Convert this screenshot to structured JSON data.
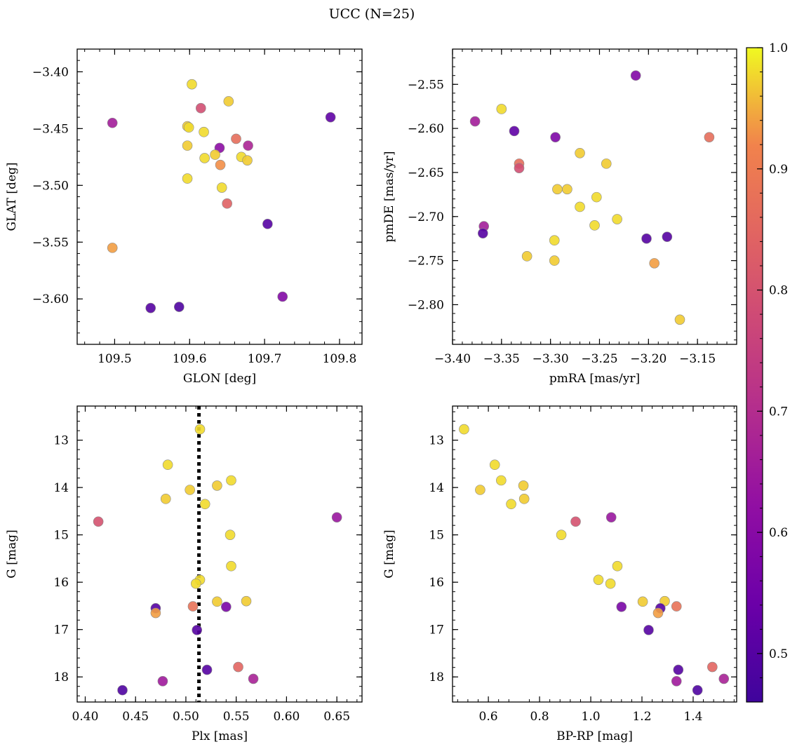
{
  "title": "UCC (N=25)",
  "colorbar": {
    "colormap": "plasma",
    "vmin": 0.46,
    "vmax": 1.0,
    "ticks": [
      0.5,
      0.6,
      0.7,
      0.8,
      0.9,
      1.0
    ],
    "tick_labels": [
      "0.5",
      "0.6",
      "0.7",
      "0.8",
      "0.9",
      "1.0"
    ]
  },
  "chart_data": [
    {
      "type": "scatter",
      "id": "glon-glat",
      "xlabel": "GLON [deg]",
      "ylabel": "GLAT [deg]",
      "xlim": [
        109.45,
        109.83
      ],
      "ylim": [
        -3.64,
        -3.38
      ],
      "y_inverted": false,
      "xticks": [
        109.5,
        109.6,
        109.7,
        109.8
      ],
      "xtick_labels": [
        "109.5",
        "109.6",
        "109.7",
        "109.8"
      ],
      "yticks": [
        -3.4,
        -3.45,
        -3.5,
        -3.55,
        -3.6
      ],
      "ytick_labels": [
        "−3.40",
        "−3.45",
        "−3.50",
        "−3.55",
        "−3.60"
      ],
      "points": [
        {
          "x": 109.603,
          "y": -3.411,
          "c": 0.98
        },
        {
          "x": 109.652,
          "y": -3.426,
          "c": 0.97
        },
        {
          "x": 109.788,
          "y": -3.44,
          "c": 0.52
        },
        {
          "x": 109.615,
          "y": -3.432,
          "c": 0.79
        },
        {
          "x": 109.497,
          "y": -3.445,
          "c": 0.66
        },
        {
          "x": 109.597,
          "y": -3.448,
          "c": 0.97
        },
        {
          "x": 109.599,
          "y": -3.449,
          "c": 0.98
        },
        {
          "x": 109.619,
          "y": -3.453,
          "c": 0.98
        },
        {
          "x": 109.662,
          "y": -3.459,
          "c": 0.87
        },
        {
          "x": 109.597,
          "y": -3.465,
          "c": 0.97
        },
        {
          "x": 109.64,
          "y": -3.467,
          "c": 0.61
        },
        {
          "x": 109.678,
          "y": -3.465,
          "c": 0.68
        },
        {
          "x": 109.634,
          "y": -3.473,
          "c": 0.97
        },
        {
          "x": 109.62,
          "y": -3.476,
          "c": 0.98
        },
        {
          "x": 109.669,
          "y": -3.475,
          "c": 0.98
        },
        {
          "x": 109.677,
          "y": -3.478,
          "c": 0.97
        },
        {
          "x": 109.641,
          "y": -3.482,
          "c": 0.93
        },
        {
          "x": 109.597,
          "y": -3.494,
          "c": 0.98
        },
        {
          "x": 109.643,
          "y": -3.502,
          "c": 0.98
        },
        {
          "x": 109.65,
          "y": -3.516,
          "c": 0.84
        },
        {
          "x": 109.704,
          "y": -3.534,
          "c": 0.5
        },
        {
          "x": 109.497,
          "y": -3.555,
          "c": 0.94
        },
        {
          "x": 109.724,
          "y": -3.598,
          "c": 0.59
        },
        {
          "x": 109.548,
          "y": -3.608,
          "c": 0.5
        },
        {
          "x": 109.586,
          "y": -3.607,
          "c": 0.49
        }
      ]
    },
    {
      "type": "scatter",
      "id": "pmra-pmde",
      "xlabel": "pmRA [mas/yr]",
      "ylabel": "pmDE [mas/yr]",
      "xlim": [
        -3.4,
        -3.11
      ],
      "ylim": [
        -2.845,
        -2.51
      ],
      "y_inverted": false,
      "xticks": [
        -3.4,
        -3.35,
        -3.3,
        -3.25,
        -3.2,
        -3.15
      ],
      "xtick_labels": [
        "−3.40",
        "−3.35",
        "−3.30",
        "−3.25",
        "−3.20",
        "−3.15"
      ],
      "yticks": [
        -2.55,
        -2.6,
        -2.65,
        -2.7,
        -2.75,
        -2.8
      ],
      "ytick_labels": [
        "−2.55",
        "−2.60",
        "−2.65",
        "−2.70",
        "−2.75",
        "−2.80"
      ],
      "points": [
        {
          "x": -3.213,
          "y": -2.54,
          "c": 0.59
        },
        {
          "x": -3.377,
          "y": -2.592,
          "c": 0.66
        },
        {
          "x": -3.35,
          "y": -2.578,
          "c": 0.98
        },
        {
          "x": -3.337,
          "y": -2.603,
          "c": 0.52
        },
        {
          "x": -3.295,
          "y": -2.61,
          "c": 0.58
        },
        {
          "x": -3.138,
          "y": -2.61,
          "c": 0.87
        },
        {
          "x": -3.27,
          "y": -2.628,
          "c": 0.97
        },
        {
          "x": -3.332,
          "y": -2.64,
          "c": 0.87
        },
        {
          "x": -3.332,
          "y": -2.645,
          "c": 0.79
        },
        {
          "x": -3.243,
          "y": -2.64,
          "c": 0.97
        },
        {
          "x": -3.293,
          "y": -2.669,
          "c": 0.97
        },
        {
          "x": -3.283,
          "y": -2.669,
          "c": 0.97
        },
        {
          "x": -3.253,
          "y": -2.678,
          "c": 0.98
        },
        {
          "x": -3.27,
          "y": -2.689,
          "c": 0.98
        },
        {
          "x": -3.255,
          "y": -2.71,
          "c": 0.98
        },
        {
          "x": -3.232,
          "y": -2.703,
          "c": 0.98
        },
        {
          "x": -3.368,
          "y": -2.711,
          "c": 0.66
        },
        {
          "x": -3.369,
          "y": -2.719,
          "c": 0.5
        },
        {
          "x": -3.202,
          "y": -2.725,
          "c": 0.5
        },
        {
          "x": -3.181,
          "y": -2.723,
          "c": 0.5
        },
        {
          "x": -3.296,
          "y": -2.727,
          "c": 0.98
        },
        {
          "x": -3.324,
          "y": -2.745,
          "c": 0.97
        },
        {
          "x": -3.296,
          "y": -2.75,
          "c": 0.97
        },
        {
          "x": -3.194,
          "y": -2.753,
          "c": 0.94
        },
        {
          "x": -3.168,
          "y": -2.817,
          "c": 0.97
        }
      ]
    },
    {
      "type": "scatter",
      "id": "plx-g",
      "xlabel": "Plx [mas]",
      "ylabel": "G [mag]",
      "xlim": [
        0.392,
        0.675
      ],
      "ylim": [
        12.28,
        18.53
      ],
      "y_inverted": true,
      "vline": {
        "x": 0.513,
        "style": "dotted"
      },
      "xticks": [
        0.4,
        0.45,
        0.5,
        0.55,
        0.6,
        0.65
      ],
      "xtick_labels": [
        "0.40",
        "0.45",
        "0.50",
        "0.55",
        "0.60",
        "0.65"
      ],
      "yticks": [
        13,
        14,
        15,
        16,
        17,
        18
      ],
      "ytick_labels": [
        "13",
        "14",
        "15",
        "16",
        "17",
        "18"
      ],
      "points": [
        {
          "x": 0.514,
          "y": 12.77,
          "c": 0.98
        },
        {
          "x": 0.482,
          "y": 13.52,
          "c": 0.98
        },
        {
          "x": 0.545,
          "y": 13.85,
          "c": 0.98
        },
        {
          "x": 0.531,
          "y": 13.96,
          "c": 0.97
        },
        {
          "x": 0.504,
          "y": 14.05,
          "c": 0.97
        },
        {
          "x": 0.48,
          "y": 14.24,
          "c": 0.97
        },
        {
          "x": 0.519,
          "y": 14.35,
          "c": 0.98
        },
        {
          "x": 0.413,
          "y": 14.72,
          "c": 0.8
        },
        {
          "x": 0.65,
          "y": 14.63,
          "c": 0.64
        },
        {
          "x": 0.544,
          "y": 15.0,
          "c": 0.98
        },
        {
          "x": 0.545,
          "y": 15.66,
          "c": 0.98
        },
        {
          "x": 0.514,
          "y": 15.95,
          "c": 0.98
        },
        {
          "x": 0.51,
          "y": 16.03,
          "c": 0.98
        },
        {
          "x": 0.531,
          "y": 16.41,
          "c": 0.97
        },
        {
          "x": 0.56,
          "y": 16.4,
          "c": 0.97
        },
        {
          "x": 0.507,
          "y": 16.51,
          "c": 0.88
        },
        {
          "x": 0.54,
          "y": 16.52,
          "c": 0.57
        },
        {
          "x": 0.47,
          "y": 16.55,
          "c": 0.5
        },
        {
          "x": 0.47,
          "y": 16.65,
          "c": 0.94
        },
        {
          "x": 0.511,
          "y": 17.01,
          "c": 0.5
        },
        {
          "x": 0.552,
          "y": 17.79,
          "c": 0.85
        },
        {
          "x": 0.521,
          "y": 17.85,
          "c": 0.5
        },
        {
          "x": 0.567,
          "y": 18.04,
          "c": 0.67
        },
        {
          "x": 0.477,
          "y": 18.09,
          "c": 0.65
        },
        {
          "x": 0.437,
          "y": 18.28,
          "c": 0.49
        }
      ]
    },
    {
      "type": "scatter",
      "id": "bprp-g",
      "xlabel": "BP-RP [mag]",
      "ylabel": "G [mag]",
      "xlim": [
        0.46,
        1.57
      ],
      "ylim": [
        12.28,
        18.53
      ],
      "y_inverted": true,
      "xticks": [
        0.6,
        0.8,
        1.0,
        1.2,
        1.4
      ],
      "xtick_labels": [
        "0.6",
        "0.8",
        "1.0",
        "1.2",
        "1.4"
      ],
      "yticks": [
        13,
        14,
        15,
        16,
        17,
        18
      ],
      "ytick_labels": [
        "13",
        "14",
        "15",
        "16",
        "17",
        "18"
      ],
      "points": [
        {
          "x": 0.505,
          "y": 12.77,
          "c": 0.98
        },
        {
          "x": 0.625,
          "y": 13.52,
          "c": 0.98
        },
        {
          "x": 0.65,
          "y": 13.85,
          "c": 0.98
        },
        {
          "x": 0.737,
          "y": 13.96,
          "c": 0.97
        },
        {
          "x": 0.568,
          "y": 14.05,
          "c": 0.97
        },
        {
          "x": 0.74,
          "y": 14.24,
          "c": 0.97
        },
        {
          "x": 0.689,
          "y": 14.35,
          "c": 0.98
        },
        {
          "x": 0.941,
          "y": 14.72,
          "c": 0.8
        },
        {
          "x": 1.08,
          "y": 14.63,
          "c": 0.64
        },
        {
          "x": 0.885,
          "y": 15.0,
          "c": 0.98
        },
        {
          "x": 1.104,
          "y": 15.66,
          "c": 0.98
        },
        {
          "x": 1.03,
          "y": 15.95,
          "c": 0.98
        },
        {
          "x": 1.077,
          "y": 16.03,
          "c": 0.98
        },
        {
          "x": 1.203,
          "y": 16.41,
          "c": 0.97
        },
        {
          "x": 1.289,
          "y": 16.4,
          "c": 0.97
        },
        {
          "x": 1.335,
          "y": 16.51,
          "c": 0.88
        },
        {
          "x": 1.12,
          "y": 16.52,
          "c": 0.57
        },
        {
          "x": 1.272,
          "y": 16.55,
          "c": 0.5
        },
        {
          "x": 1.263,
          "y": 16.65,
          "c": 0.94
        },
        {
          "x": 1.226,
          "y": 17.01,
          "c": 0.5
        },
        {
          "x": 1.475,
          "y": 17.79,
          "c": 0.85
        },
        {
          "x": 1.342,
          "y": 17.85,
          "c": 0.5
        },
        {
          "x": 1.52,
          "y": 18.04,
          "c": 0.67
        },
        {
          "x": 1.335,
          "y": 18.09,
          "c": 0.65
        },
        {
          "x": 1.417,
          "y": 18.28,
          "c": 0.49
        }
      ]
    }
  ]
}
